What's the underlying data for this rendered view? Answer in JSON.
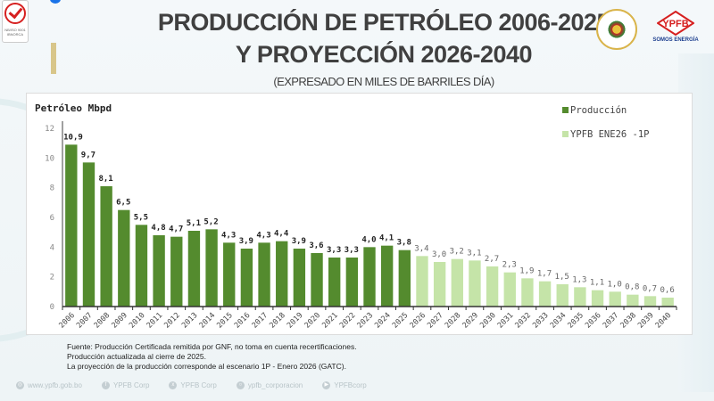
{
  "header": {
    "title_line1": "PRODUCCIÓN DE PETRÓLEO 2006-2025",
    "title_line2": "Y PROYECCIÓN 2026-2040",
    "subtitle": "(EXPRESADO EN MILES DE BARRILES DÍA)",
    "cert_logo_text": "NB/ISO 9001 IBNORCA",
    "brand_logo_text": "YPFB",
    "brand_slogan": "SOMOS ENERGÍA"
  },
  "colors": {
    "produccion": "#548b2e",
    "proyeccion": "#c5e4a8",
    "axis": "#808080",
    "title_text": "#404040"
  },
  "chart_data": {
    "type": "bar",
    "title": "Petróleo Mbpd",
    "xlabel": "",
    "ylabel": "",
    "ylim": [
      0,
      12
    ],
    "yticks": [
      0,
      2,
      4,
      6,
      8,
      10,
      12
    ],
    "grid": false,
    "legend_position": "top-right",
    "decimal_separator": ",",
    "categories": [
      "2006",
      "2007",
      "2008",
      "2009",
      "2010",
      "2011",
      "2012",
      "2013",
      "2014",
      "2015",
      "2016",
      "2017",
      "2018",
      "2019",
      "2020",
      "2021",
      "2022",
      "2023",
      "2024",
      "2025",
      "2026",
      "2027",
      "2028",
      "2029",
      "2030",
      "2031",
      "2032",
      "2033",
      "2034",
      "2035",
      "2036",
      "2037",
      "2038",
      "2039",
      "2040"
    ],
    "series": [
      {
        "name": "Producción",
        "color": "#548b2e",
        "categories": [
          "2006",
          "2007",
          "2008",
          "2009",
          "2010",
          "2011",
          "2012",
          "2013",
          "2014",
          "2015",
          "2016",
          "2017",
          "2018",
          "2019",
          "2020",
          "2021",
          "2022",
          "2023",
          "2024",
          "2025"
        ],
        "values": [
          10.9,
          9.7,
          8.1,
          6.5,
          5.5,
          4.8,
          4.7,
          5.1,
          5.2,
          4.3,
          3.9,
          4.3,
          4.4,
          3.9,
          3.6,
          3.3,
          3.3,
          4.0,
          4.1,
          3.8
        ]
      },
      {
        "name": "YPFB ENE26 -1P",
        "color": "#c5e4a8",
        "categories": [
          "2026",
          "2027",
          "2028",
          "2029",
          "2030",
          "2031",
          "2032",
          "2033",
          "2034",
          "2035",
          "2036",
          "2037",
          "2038",
          "2039",
          "2040"
        ],
        "values": [
          3.4,
          3.0,
          3.2,
          3.1,
          2.7,
          2.3,
          1.9,
          1.7,
          1.5,
          1.3,
          1.1,
          1.0,
          0.8,
          0.7,
          0.6
        ]
      }
    ]
  },
  "footnotes": [
    "Fuente: Producción Certificada remitida por GNF, no toma en cuenta recertificaciones.",
    "Producción actualizada al cierre de 2025.",
    "La proyección de la producción corresponde al escenario 1P - Enero 2026 (GATC)."
  ],
  "footer_links": [
    {
      "icon": "globe-icon",
      "label": "www.ypfb.gob.bo"
    },
    {
      "icon": "facebook-icon",
      "label": "YPFB Corp"
    },
    {
      "icon": "x-icon",
      "label": "YPFB Corp"
    },
    {
      "icon": "instagram-icon",
      "label": "ypfb_corporacion"
    },
    {
      "icon": "youtube-icon",
      "label": "YPFBcorp"
    }
  ]
}
